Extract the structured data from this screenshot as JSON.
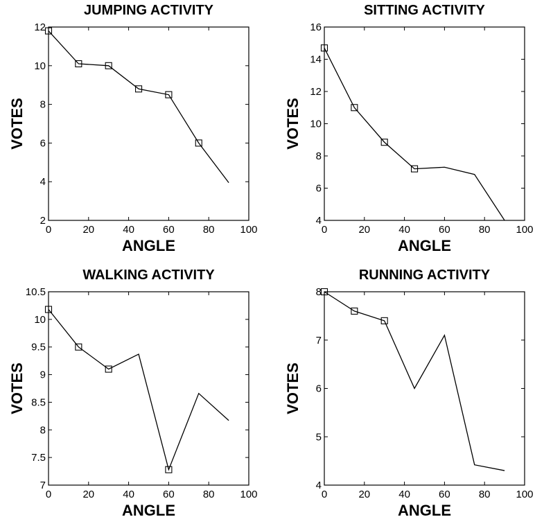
{
  "chart_data": [
    {
      "type": "line",
      "title": "JUMPING ACTIVITY",
      "xlabel": "ANGLE",
      "ylabel": "VOTES",
      "xlim": [
        0,
        100
      ],
      "ylim": [
        2,
        12
      ],
      "xticks": [
        0,
        20,
        40,
        60,
        80,
        100
      ],
      "yticks": [
        2,
        4,
        6,
        8,
        10,
        12
      ],
      "grid": false,
      "series": [
        {
          "x": [
            0,
            15,
            30,
            45,
            60,
            75,
            90
          ],
          "values": [
            11.8,
            10.1,
            10.0,
            8.8,
            8.5,
            6.0,
            3.95
          ],
          "markers": [
            true,
            true,
            true,
            true,
            true,
            true,
            false
          ]
        }
      ]
    },
    {
      "type": "line",
      "title": "SITTING ACTIVITY",
      "xlabel": "ANGLE",
      "ylabel": "VOTES",
      "xlim": [
        0,
        100
      ],
      "ylim": [
        4,
        16
      ],
      "xticks": [
        0,
        20,
        40,
        60,
        80,
        100
      ],
      "yticks": [
        4,
        6,
        8,
        10,
        12,
        14,
        16
      ],
      "grid": false,
      "series": [
        {
          "x": [
            0,
            15,
            30,
            45,
            60,
            75,
            90
          ],
          "values": [
            14.7,
            11.0,
            8.85,
            7.2,
            7.3,
            6.85,
            4.0
          ],
          "markers": [
            true,
            true,
            true,
            true,
            false,
            false,
            false
          ]
        }
      ]
    },
    {
      "type": "line",
      "title": "WALKING ACTIVITY",
      "xlabel": "ANGLE",
      "ylabel": "VOTES",
      "xlim": [
        0,
        100
      ],
      "ylim": [
        7,
        10.5
      ],
      "xticks": [
        0,
        20,
        40,
        60,
        80,
        100
      ],
      "yticks": [
        7,
        7.5,
        8,
        8.5,
        9,
        9.5,
        10,
        10.5
      ],
      "grid": false,
      "series": [
        {
          "x": [
            0,
            15,
            30,
            45,
            60,
            75,
            90
          ],
          "values": [
            10.18,
            9.5,
            9.1,
            9.37,
            7.28,
            8.66,
            8.17
          ],
          "markers": [
            true,
            true,
            true,
            false,
            true,
            false,
            false
          ]
        }
      ]
    },
    {
      "type": "line",
      "title": "RUNNING ACTIVITY",
      "xlabel": "ANGLE",
      "ylabel": "VOTES",
      "xlim": [
        0,
        100
      ],
      "ylim": [
        4,
        8
      ],
      "xticks": [
        0,
        20,
        40,
        60,
        80,
        100
      ],
      "yticks": [
        4,
        5,
        6,
        7,
        8
      ],
      "grid": false,
      "series": [
        {
          "x": [
            0,
            15,
            30,
            45,
            60,
            75,
            90
          ],
          "values": [
            8.0,
            7.6,
            7.4,
            6.0,
            7.1,
            4.42,
            4.3
          ],
          "markers": [
            true,
            true,
            true,
            false,
            false,
            false,
            false
          ]
        }
      ]
    }
  ]
}
